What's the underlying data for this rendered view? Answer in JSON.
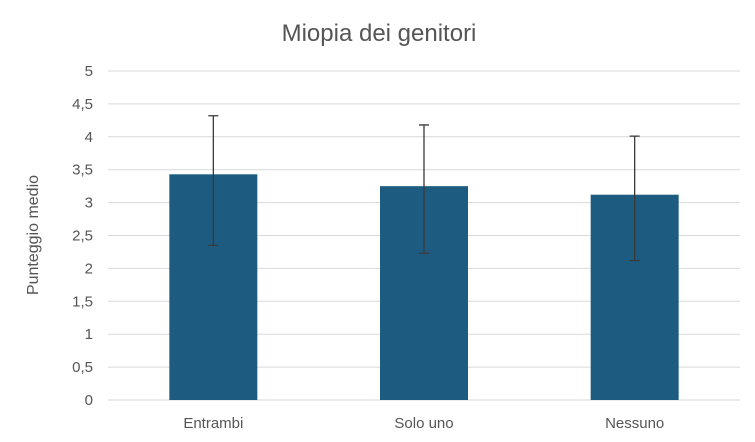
{
  "chart_data": {
    "type": "bar",
    "title": "Miopia dei genitori",
    "xlabel": "",
    "ylabel": "Punteggio medio",
    "categories": [
      "Entrambi",
      "Solo uno",
      "Nessuno"
    ],
    "values": [
      3.43,
      3.25,
      3.12
    ],
    "error_low": [
      2.35,
      2.23,
      2.12
    ],
    "error_high": [
      4.32,
      4.18,
      4.01
    ],
    "ylim": [
      0,
      5
    ],
    "yticks": [
      0,
      0.5,
      1,
      1.5,
      2,
      2.5,
      3,
      3.5,
      4,
      4.5,
      5
    ],
    "ytick_labels": [
      "0",
      "0,5",
      "1",
      "1,5",
      "2",
      "2,5",
      "3",
      "3,5",
      "4",
      "4,5",
      "5"
    ],
    "grid": true,
    "legend": "none",
    "colors": {
      "bar": "#1d5b81",
      "error_bar": "#3a3a3a",
      "grid": "#d9d9d9",
      "text": "#555555"
    }
  }
}
